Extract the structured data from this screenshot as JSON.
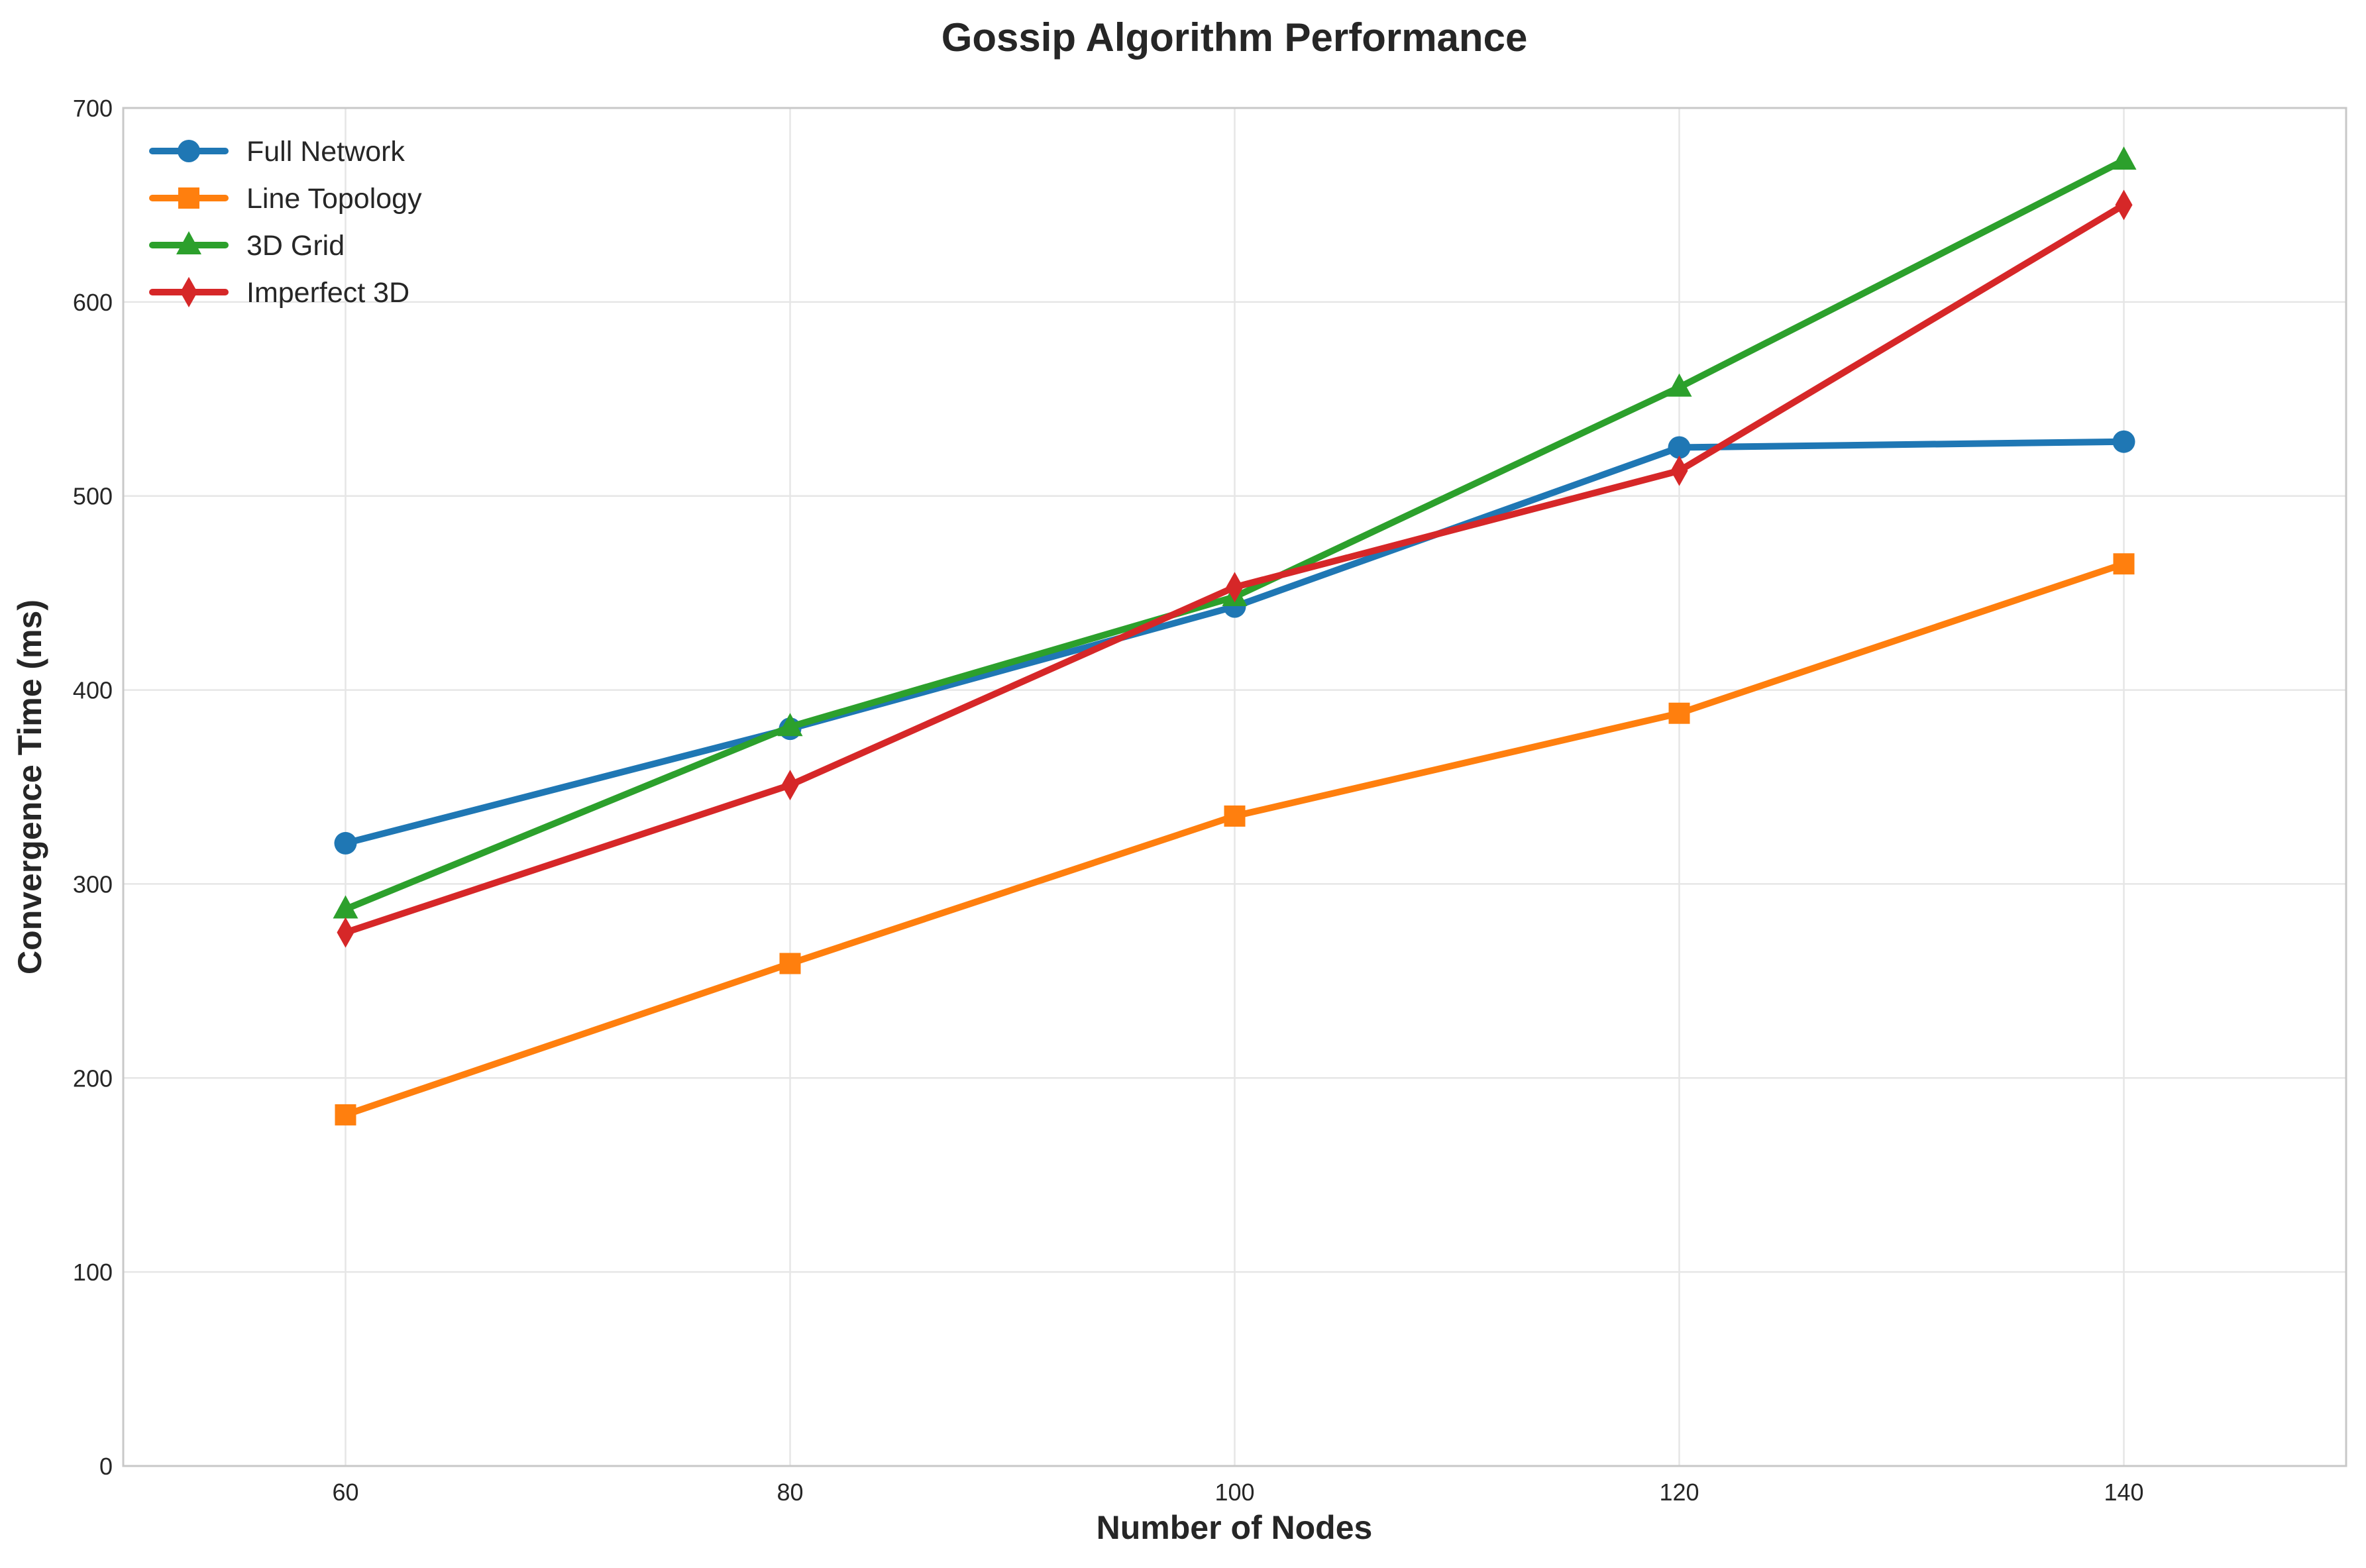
{
  "chart_data": {
    "type": "line",
    "title": "Gossip Algorithm Performance",
    "xlabel": "Number of Nodes",
    "ylabel": "Convergence Time (ms)",
    "x": [
      60,
      80,
      100,
      120,
      140
    ],
    "xlim": [
      50,
      150
    ],
    "ylim": [
      0,
      700
    ],
    "xticks": [
      60,
      80,
      100,
      120,
      140
    ],
    "yticks": [
      0,
      100,
      200,
      300,
      400,
      500,
      600,
      700
    ],
    "grid": true,
    "legend_position": "top-left",
    "series": [
      {
        "name": "Full Network",
        "values": [
          321,
          380,
          443,
          525,
          528
        ],
        "color": "#1f77b4",
        "marker": "circle"
      },
      {
        "name": "Line Topology",
        "values": [
          181,
          259,
          335,
          388,
          465
        ],
        "color": "#ff7f0e",
        "marker": "square"
      },
      {
        "name": "3D Grid",
        "values": [
          287,
          381,
          448,
          556,
          673
        ],
        "color": "#2ca02c",
        "marker": "triangle"
      },
      {
        "name": "Imperfect 3D",
        "values": [
          275,
          351,
          453,
          513,
          650
        ],
        "color": "#d62728",
        "marker": "diamond"
      }
    ]
  }
}
